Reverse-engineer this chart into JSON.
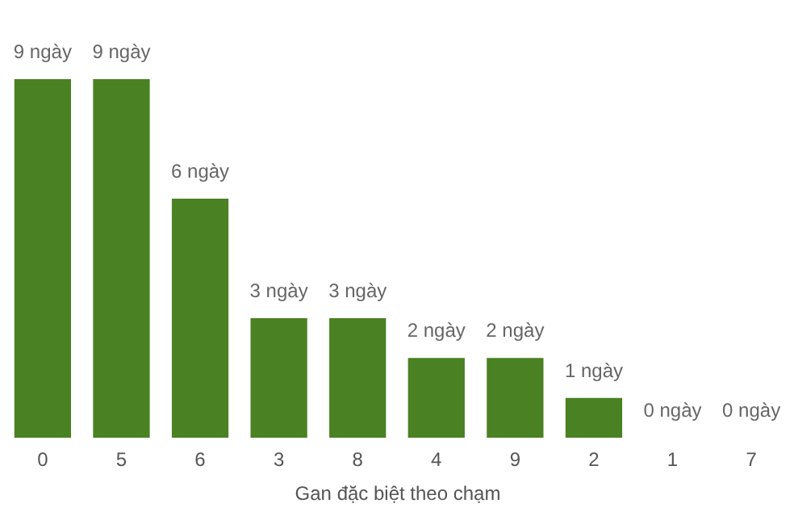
{
  "chart_data": {
    "type": "bar",
    "xlabel": "Gan đặc biệt theo chạm",
    "categories": [
      "0",
      "5",
      "6",
      "3",
      "8",
      "4",
      "9",
      "2",
      "1",
      "7"
    ],
    "values": [
      9,
      9,
      6,
      3,
      3,
      2,
      2,
      1,
      0,
      0
    ],
    "value_labels": [
      "9 ngày",
      "9 ngày",
      "6 ngày",
      "3 ngày",
      "3 ngày",
      "2 ngày",
      "2 ngày",
      "1 ngày",
      "0 ngày",
      "0 ngày"
    ],
    "color": "#4a8122",
    "ylim": [
      0,
      9
    ],
    "grid": false
  }
}
